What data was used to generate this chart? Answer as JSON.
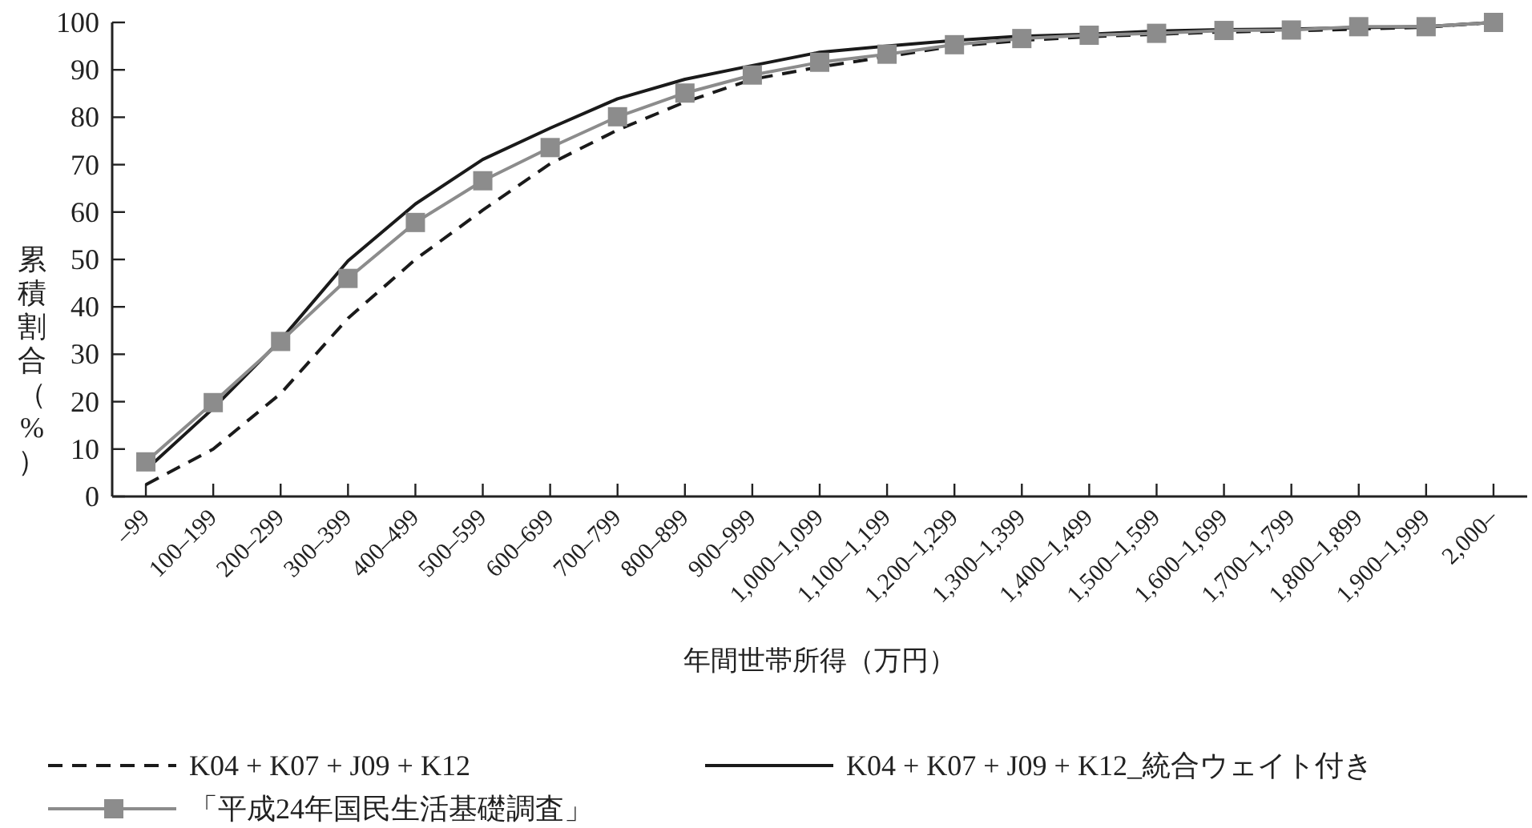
{
  "chart_data": {
    "type": "line",
    "xlabel": "年間世帯所得（万円）",
    "ylabel": "累積割合（%）",
    "categories": [
      "–99",
      "100–199",
      "200–299",
      "300–399",
      "400–499",
      "500–599",
      "600–699",
      "700–799",
      "800–899",
      "900–999",
      "1,000–1,099",
      "1,100–1,199",
      "1,200–1,299",
      "1,300–1,399",
      "1,400–1,499",
      "1,500–1,599",
      "1,600–1,699",
      "1,700–1,799",
      "1,800–1,899",
      "1,900–1,999",
      "2,000–"
    ],
    "ylim": [
      0,
      100
    ],
    "yticks": [
      0,
      10,
      20,
      30,
      40,
      50,
      60,
      70,
      80,
      90,
      100
    ],
    "legend": "bottom",
    "series": [
      {
        "name": "K04 + K07 + J09 + K12",
        "color": "#1a1a1a",
        "line_style": "dashed",
        "marker": "none",
        "values": [
          2.5,
          10,
          21.7,
          37.6,
          50,
          60.4,
          70.2,
          77.3,
          83.2,
          88,
          90.6,
          92.8,
          95,
          96.2,
          97,
          97.5,
          98,
          98.2,
          98.6,
          99,
          100
        ]
      },
      {
        "name": "K04 + K07 + J09 + K12_統合ウェイト付き",
        "color": "#1a1a1a",
        "line_style": "solid",
        "marker": "none",
        "values": [
          5.6,
          18.6,
          33,
          49.7,
          61.7,
          71.1,
          77.7,
          83.9,
          88,
          90.9,
          93.7,
          95,
          96.2,
          97.1,
          97.5,
          98.2,
          98.5,
          98.6,
          98.9,
          99.1,
          100
        ]
      },
      {
        "name": "「平成24年国民生活基礎調査」",
        "color": "#8c8c8c",
        "line_style": "solid",
        "marker": "square",
        "values": [
          7.3,
          19.8,
          32.7,
          46,
          57.8,
          66.6,
          73.6,
          80.1,
          85.1,
          88.9,
          91.6,
          93.3,
          95.3,
          96.6,
          97.3,
          97.7,
          98.3,
          98.4,
          99.1,
          99.1,
          100
        ]
      }
    ]
  }
}
